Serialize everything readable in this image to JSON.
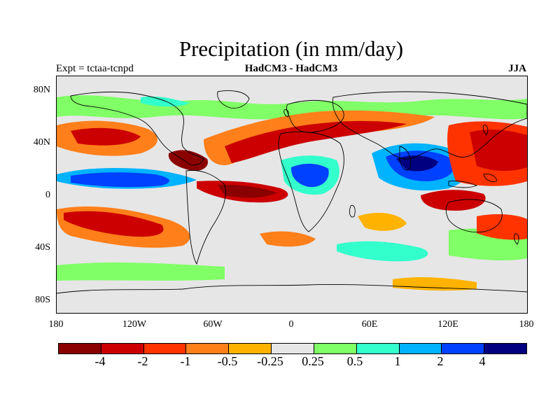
{
  "title": "Precipitation (in mm/day)",
  "subtitle_left": "Expt = tctaa-tcnpd",
  "subtitle_center": "HadCM3 - HadCM3",
  "subtitle_right": "JJA",
  "lat_labels": [
    "80N",
    "40N",
    "0",
    "40S",
    "80S"
  ],
  "lon_labels": [
    "180",
    "120W",
    "60W",
    "0",
    "60E",
    "120E",
    "180"
  ],
  "colorbar": {
    "colors": [
      "#8b0000",
      "#cc0000",
      "#ff3300",
      "#ff7f1a",
      "#ffb300",
      "#e6e6e6",
      "#80ff66",
      "#33ffcc",
      "#00b3ff",
      "#0040ff",
      "#000080"
    ],
    "labels": [
      "-4",
      "-2",
      "-1",
      "-0.5",
      "-0.25",
      "0.25",
      "0.5",
      "1",
      "2",
      "4"
    ]
  },
  "colors": {
    "strong_dry": "#8b0000",
    "dry": "#cc0000",
    "mod_dry": "#ff3300",
    "light_dry": "#ff7f1a",
    "faint_dry": "#ffb300",
    "neutral": "#e6e6e6",
    "faint_wet": "#80ff66",
    "light_wet": "#33ffcc",
    "mod_wet": "#00b3ff",
    "wet": "#0040ff",
    "strong_wet": "#000080"
  }
}
